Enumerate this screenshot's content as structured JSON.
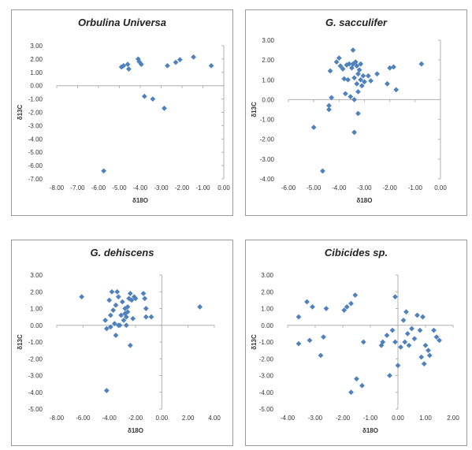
{
  "chart_data": [
    {
      "type": "scatter",
      "title": "Orbulina Universa",
      "xlabel": "δ18O",
      "ylabel": "δ13C",
      "xlim": [
        -8,
        0
      ],
      "ylim": [
        -7,
        3
      ],
      "xticks": [
        "-8.00",
        "-7.00",
        "-6.00",
        "-5.00",
        "-4.00",
        "-3.00",
        "-2.00",
        "-1.00",
        "0.00"
      ],
      "yticks": [
        "3.00",
        "2.00",
        "1.00",
        "0.00",
        "-1.00",
        "-2.00",
        "-3.00",
        "-4.00",
        "-5.00",
        "-6.00",
        "-7.00"
      ],
      "grid": false,
      "color": "#4f81bd",
      "points": [
        [
          -4.9,
          1.4
        ],
        [
          -4.8,
          1.5
        ],
        [
          -4.6,
          1.6
        ],
        [
          -4.55,
          1.25
        ],
        [
          -4.1,
          2.0
        ],
        [
          -4.05,
          1.8
        ],
        [
          -3.95,
          1.6
        ],
        [
          -3.8,
          -0.8
        ],
        [
          -3.4,
          -1.0
        ],
        [
          -2.85,
          -1.7
        ],
        [
          -2.7,
          1.5
        ],
        [
          -2.3,
          1.75
        ],
        [
          -2.1,
          1.95
        ],
        [
          -1.45,
          2.15
        ],
        [
          -0.6,
          1.5
        ],
        [
          -5.75,
          -6.4
        ]
      ]
    },
    {
      "type": "scatter",
      "title": "G. sacculifer",
      "xlabel": "δ18O",
      "ylabel": "δ13C",
      "xlim": [
        -6,
        0
      ],
      "ylim": [
        -4,
        3
      ],
      "xticks": [
        "-6.00",
        "-5.00",
        "-4.00",
        "-3.00",
        "-2.00",
        "-1.00",
        "0.00"
      ],
      "yticks": [
        "3.00",
        "2.00",
        "1.00",
        "0.00",
        "-1.00",
        "-2.00",
        "-3.00",
        "-4.00"
      ],
      "grid": false,
      "color": "#4f81bd",
      "points": [
        [
          -4.65,
          -3.6
        ],
        [
          -5.0,
          -1.4
        ],
        [
          -4.4,
          -0.3
        ],
        [
          -4.4,
          -0.5
        ],
        [
          -4.35,
          1.45
        ],
        [
          -4.3,
          0.1
        ],
        [
          -4.1,
          1.9
        ],
        [
          -4.0,
          2.1
        ],
        [
          -3.95,
          1.7
        ],
        [
          -3.85,
          1.55
        ],
        [
          -3.8,
          1.05
        ],
        [
          -3.75,
          0.3
        ],
        [
          -3.7,
          1.75
        ],
        [
          -3.65,
          1.0
        ],
        [
          -3.6,
          1.8
        ],
        [
          -3.55,
          0.15
        ],
        [
          -3.5,
          1.6
        ],
        [
          -3.45,
          2.5
        ],
        [
          -3.45,
          1.8
        ],
        [
          -3.4,
          0.0
        ],
        [
          -3.4,
          1.1
        ],
        [
          -3.35,
          1.9
        ],
        [
          -3.3,
          1.7
        ],
        [
          -3.3,
          0.8
        ],
        [
          -3.25,
          1.3
        ],
        [
          -3.2,
          1.5
        ],
        [
          -3.15,
          1.0
        ],
        [
          -3.1,
          0.7
        ],
        [
          -3.05,
          1.2
        ],
        [
          -3.0,
          0.9
        ],
        [
          -3.4,
          -1.65
        ],
        [
          -3.25,
          -0.7
        ],
        [
          -3.25,
          0.4
        ],
        [
          -3.15,
          1.8
        ],
        [
          -2.85,
          1.2
        ],
        [
          -2.75,
          0.95
        ],
        [
          -2.5,
          1.3
        ],
        [
          -2.1,
          0.8
        ],
        [
          -2.0,
          1.6
        ],
        [
          -1.85,
          1.65
        ],
        [
          -1.75,
          0.5
        ],
        [
          -0.75,
          1.8
        ]
      ]
    },
    {
      "type": "scatter",
      "title": "G. dehiscens",
      "xlabel": "δ18O",
      "ylabel": "δ13C",
      "xlim": [
        -8,
        4
      ],
      "ylim": [
        -5,
        3
      ],
      "xticks": [
        "-8.00",
        "-6.00",
        "-4.00",
        "-2.00",
        "0.00",
        "2.00",
        "4.00"
      ],
      "yticks": [
        "3.00",
        "2.00",
        "1.00",
        "0.00",
        "-1.00",
        "-2.00",
        "-3.00",
        "-4.00",
        "-5.00"
      ],
      "grid": false,
      "color": "#4f81bd",
      "points": [
        [
          -6.1,
          1.7
        ],
        [
          -4.2,
          -3.9
        ],
        [
          -4.3,
          0.3
        ],
        [
          -4.2,
          -0.2
        ],
        [
          -4.0,
          1.5
        ],
        [
          -3.9,
          -0.1
        ],
        [
          -3.8,
          2.0
        ],
        [
          -3.7,
          0.9
        ],
        [
          -3.6,
          0.1
        ],
        [
          -3.5,
          1.2
        ],
        [
          -3.4,
          2.0
        ],
        [
          -3.3,
          1.7
        ],
        [
          -3.2,
          0.0
        ],
        [
          -3.1,
          0.6
        ],
        [
          -3.0,
          1.4
        ],
        [
          -2.9,
          0.3
        ],
        [
          -2.8,
          1.0
        ],
        [
          -2.7,
          0.5
        ],
        [
          -2.6,
          0.8
        ],
        [
          -2.5,
          1.6
        ],
        [
          -2.4,
          1.9
        ],
        [
          -2.3,
          1.5
        ],
        [
          -2.2,
          0.4
        ],
        [
          -2.1,
          1.7
        ],
        [
          -2.6,
          1.1
        ],
        [
          -2.8,
          0.7
        ],
        [
          -2.4,
          -1.2
        ],
        [
          -3.5,
          -0.6
        ],
        [
          -2.0,
          1.6
        ],
        [
          -1.4,
          1.9
        ],
        [
          -1.3,
          1.6
        ],
        [
          -1.2,
          1.0
        ],
        [
          -1.2,
          0.5
        ],
        [
          -0.8,
          0.5
        ],
        [
          -3.9,
          0.6
        ],
        [
          -3.3,
          0.0
        ],
        [
          -2.7,
          0.0
        ],
        [
          2.9,
          1.1
        ]
      ]
    },
    {
      "type": "scatter",
      "title": "Cibicides sp.",
      "xlabel": "δ18O",
      "ylabel": "δ13C",
      "xlim": [
        -4,
        2
      ],
      "ylim": [
        -5,
        3
      ],
      "xticks": [
        "-4.00",
        "-3.00",
        "-2.00",
        "-1.00",
        "0.00",
        "1.00",
        "2.00"
      ],
      "yticks": [
        "3.00",
        "2.00",
        "1.00",
        "0.00",
        "-1.00",
        "-2.00",
        "-3.00",
        "-4.00",
        "-5.00"
      ],
      "grid": false,
      "color": "#4f81bd",
      "points": [
        [
          -3.6,
          -1.1
        ],
        [
          -3.6,
          0.5
        ],
        [
          -3.3,
          1.4
        ],
        [
          -3.2,
          -0.9
        ],
        [
          -3.1,
          1.1
        ],
        [
          -2.8,
          -1.8
        ],
        [
          -2.7,
          -0.7
        ],
        [
          -2.6,
          1.0
        ],
        [
          -1.95,
          0.9
        ],
        [
          -1.85,
          1.1
        ],
        [
          -1.7,
          1.3
        ],
        [
          -1.55,
          1.8
        ],
        [
          -1.5,
          -3.2
        ],
        [
          -1.7,
          -4.0
        ],
        [
          -1.3,
          -3.6
        ],
        [
          -1.25,
          -1.0
        ],
        [
          -0.6,
          -1.2
        ],
        [
          -0.55,
          -1.0
        ],
        [
          -0.4,
          -0.6
        ],
        [
          -0.2,
          -0.3
        ],
        [
          -0.1,
          1.7
        ],
        [
          -0.1,
          -1.0
        ],
        [
          0.0,
          -2.4
        ],
        [
          0.1,
          -1.3
        ],
        [
          0.2,
          0.3
        ],
        [
          0.3,
          0.8
        ],
        [
          0.35,
          -0.5
        ],
        [
          0.4,
          -1.2
        ],
        [
          0.5,
          -0.2
        ],
        [
          0.6,
          -0.8
        ],
        [
          0.7,
          0.6
        ],
        [
          0.8,
          -0.3
        ],
        [
          0.85,
          -1.9
        ],
        [
          0.9,
          0.5
        ],
        [
          1.0,
          -1.2
        ],
        [
          1.1,
          -1.5
        ],
        [
          1.15,
          -1.8
        ],
        [
          1.3,
          -0.3
        ],
        [
          1.4,
          -0.7
        ],
        [
          1.5,
          -0.9
        ],
        [
          0.95,
          -2.3
        ],
        [
          -0.3,
          -3.0
        ],
        [
          0.25,
          -1.0
        ]
      ]
    }
  ]
}
